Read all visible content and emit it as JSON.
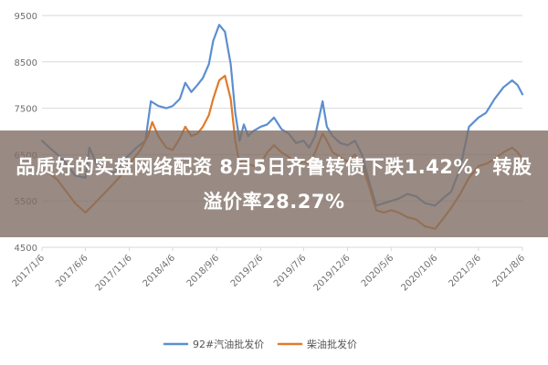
{
  "headline": "品质好的实盘网络配资 8月5日齐鲁转债下跌1.42%，转股溢价率28.27%",
  "chart_data": {
    "type": "line",
    "title": "",
    "xlabel": "",
    "ylabel": "",
    "ylim": [
      4500,
      9500
    ],
    "xlim": [
      "2017-01-06",
      "2021-08-06"
    ],
    "yticks": [
      4500,
      5500,
      6500,
      7500,
      8500,
      9500
    ],
    "xticks": [
      "2017/1/6",
      "2017/6/6",
      "2017/11/6",
      "2018/4/6",
      "2018/9/6",
      "2019/2/6",
      "2019/7/6",
      "2019/12/6",
      "2020/5/6",
      "2020/10/6",
      "2021/3/6",
      "2021/8/6"
    ],
    "grid": "horizontal",
    "legend_position": "bottom",
    "colors": {
      "gasoline": "#5b8fd0",
      "diesel": "#e07b2a",
      "grid": "#d9d9d9",
      "axis_text": "#6e6e6e"
    },
    "series": [
      {
        "name": "92#汽油批发价",
        "color": "#5b8fd0",
        "points": [
          [
            "2017-01-06",
            6800
          ],
          [
            "2017-02-01",
            6650
          ],
          [
            "2017-03-01",
            6500
          ],
          [
            "2017-04-01",
            6300
          ],
          [
            "2017-05-01",
            6050
          ],
          [
            "2017-06-06",
            6000
          ],
          [
            "2017-06-20",
            6650
          ],
          [
            "2017-07-15",
            6300
          ],
          [
            "2017-08-15",
            6150
          ],
          [
            "2017-09-15",
            6100
          ],
          [
            "2017-10-15",
            6350
          ],
          [
            "2017-11-06",
            6500
          ],
          [
            "2017-12-01",
            6650
          ],
          [
            "2018-01-01",
            6800
          ],
          [
            "2018-01-20",
            7650
          ],
          [
            "2018-02-15",
            7550
          ],
          [
            "2018-03-15",
            7500
          ],
          [
            "2018-04-06",
            7550
          ],
          [
            "2018-05-01",
            7700
          ],
          [
            "2018-05-20",
            8050
          ],
          [
            "2018-06-10",
            7850
          ],
          [
            "2018-07-01",
            8000
          ],
          [
            "2018-07-20",
            8150
          ],
          [
            "2018-08-10",
            8450
          ],
          [
            "2018-08-25",
            8950
          ],
          [
            "2018-09-15",
            9300
          ],
          [
            "2018-10-05",
            9150
          ],
          [
            "2018-10-25",
            8450
          ],
          [
            "2018-11-10",
            7400
          ],
          [
            "2018-11-25",
            6800
          ],
          [
            "2018-12-10",
            7150
          ],
          [
            "2018-12-25",
            6900
          ],
          [
            "2019-01-10",
            7000
          ],
          [
            "2019-02-06",
            7100
          ],
          [
            "2019-03-01",
            7150
          ],
          [
            "2019-03-25",
            7300
          ],
          [
            "2019-04-20",
            7050
          ],
          [
            "2019-05-15",
            6950
          ],
          [
            "2019-06-10",
            6750
          ],
          [
            "2019-07-06",
            6800
          ],
          [
            "2019-07-25",
            6650
          ],
          [
            "2019-08-15",
            6900
          ],
          [
            "2019-09-10",
            7650
          ],
          [
            "2019-09-25",
            7100
          ],
          [
            "2019-10-15",
            6900
          ],
          [
            "2019-11-10",
            6750
          ],
          [
            "2019-12-06",
            6700
          ],
          [
            "2020-01-01",
            6800
          ],
          [
            "2020-01-25",
            6500
          ],
          [
            "2020-02-20",
            5900
          ],
          [
            "2020-03-15",
            5400
          ],
          [
            "2020-04-10",
            5450
          ],
          [
            "2020-05-06",
            5500
          ],
          [
            "2020-06-01",
            5550
          ],
          [
            "2020-07-01",
            5650
          ],
          [
            "2020-08-01",
            5600
          ],
          [
            "2020-09-01",
            5450
          ],
          [
            "2020-10-06",
            5400
          ],
          [
            "2020-11-01",
            5550
          ],
          [
            "2020-12-01",
            5700
          ],
          [
            "2021-01-01",
            6200
          ],
          [
            "2021-02-01",
            7100
          ],
          [
            "2021-03-06",
            7300
          ],
          [
            "2021-04-01",
            7400
          ],
          [
            "2021-05-01",
            7700
          ],
          [
            "2021-06-01",
            7950
          ],
          [
            "2021-07-01",
            8100
          ],
          [
            "2021-07-20",
            8000
          ],
          [
            "2021-08-06",
            7800
          ]
        ]
      },
      {
        "name": "柴油批发价",
        "color": "#e07b2a",
        "points": [
          [
            "2017-01-06",
            6150
          ],
          [
            "2017-02-01",
            6100
          ],
          [
            "2017-03-01",
            5950
          ],
          [
            "2017-04-01",
            5700
          ],
          [
            "2017-05-01",
            5450
          ],
          [
            "2017-06-06",
            5250
          ],
          [
            "2017-07-01",
            5400
          ],
          [
            "2017-08-01",
            5600
          ],
          [
            "2017-09-01",
            5800
          ],
          [
            "2017-10-01",
            6000
          ],
          [
            "2017-11-06",
            6300
          ],
          [
            "2017-12-15",
            6600
          ],
          [
            "2018-01-10",
            6900
          ],
          [
            "2018-01-25",
            7200
          ],
          [
            "2018-02-15",
            6900
          ],
          [
            "2018-03-15",
            6650
          ],
          [
            "2018-04-06",
            6600
          ],
          [
            "2018-05-01",
            6850
          ],
          [
            "2018-05-20",
            7100
          ],
          [
            "2018-06-10",
            6900
          ],
          [
            "2018-07-01",
            6950
          ],
          [
            "2018-07-20",
            7100
          ],
          [
            "2018-08-10",
            7350
          ],
          [
            "2018-08-25",
            7700
          ],
          [
            "2018-09-15",
            8100
          ],
          [
            "2018-10-05",
            8200
          ],
          [
            "2018-10-25",
            7700
          ],
          [
            "2018-11-10",
            6800
          ],
          [
            "2018-11-25",
            6300
          ],
          [
            "2018-12-10",
            6400
          ],
          [
            "2018-12-25",
            6300
          ],
          [
            "2019-01-15",
            6250
          ],
          [
            "2019-02-06",
            6300
          ],
          [
            "2019-03-01",
            6550
          ],
          [
            "2019-03-25",
            6700
          ],
          [
            "2019-04-20",
            6550
          ],
          [
            "2019-05-15",
            6450
          ],
          [
            "2019-06-10",
            6300
          ],
          [
            "2019-07-06",
            6350
          ],
          [
            "2019-07-25",
            6300
          ],
          [
            "2019-08-15",
            6550
          ],
          [
            "2019-09-10",
            6950
          ],
          [
            "2019-09-25",
            6800
          ],
          [
            "2019-10-15",
            6550
          ],
          [
            "2019-11-10",
            6450
          ],
          [
            "2019-12-06",
            6350
          ],
          [
            "2020-01-01",
            6500
          ],
          [
            "2020-01-25",
            6300
          ],
          [
            "2020-02-20",
            5800
          ],
          [
            "2020-03-15",
            5300
          ],
          [
            "2020-04-10",
            5250
          ],
          [
            "2020-05-06",
            5300
          ],
          [
            "2020-06-01",
            5250
          ],
          [
            "2020-07-01",
            5150
          ],
          [
            "2020-08-01",
            5100
          ],
          [
            "2020-09-01",
            4950
          ],
          [
            "2020-10-06",
            4900
          ],
          [
            "2020-11-01",
            5100
          ],
          [
            "2020-12-01",
            5350
          ],
          [
            "2021-01-01",
            5650
          ],
          [
            "2021-02-01",
            6000
          ],
          [
            "2021-03-06",
            6250
          ],
          [
            "2021-04-01",
            6300
          ],
          [
            "2021-05-01",
            6400
          ],
          [
            "2021-06-01",
            6550
          ],
          [
            "2021-07-01",
            6650
          ],
          [
            "2021-07-20",
            6550
          ],
          [
            "2021-08-06",
            6400
          ]
        ]
      }
    ]
  }
}
